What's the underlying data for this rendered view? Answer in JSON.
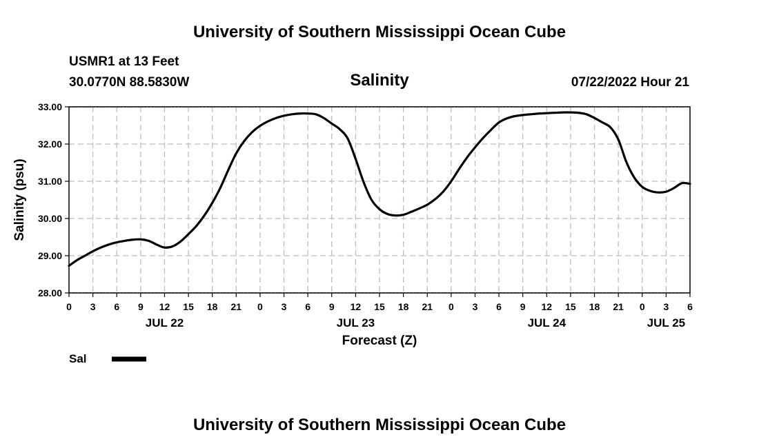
{
  "header": {
    "title": "University of Southern Mississippi Ocean Cube",
    "station": "USMR1 at 13 Feet",
    "coords": "30.0770N  88.5830W",
    "datetime": "07/22/2022 Hour 21"
  },
  "footer": {
    "title": "University of Southern Mississippi Ocean Cube"
  },
  "chart_data": {
    "type": "line",
    "title": "Salinity",
    "xlabel": "Forecast (Z)",
    "ylabel": "Salinity (psu)",
    "x_unit": "hours from JUL 22 00Z",
    "xlim": [
      0,
      78
    ],
    "ylim": [
      28.0,
      33.0
    ],
    "grid": true,
    "x_ticks": [
      0,
      3,
      6,
      9,
      12,
      15,
      18,
      21,
      24,
      27,
      30,
      33,
      36,
      39,
      42,
      45,
      48,
      51,
      54,
      57,
      60,
      63,
      66,
      69,
      72,
      75,
      78
    ],
    "x_tick_labels": [
      "0",
      "3",
      "6",
      "9",
      "12",
      "15",
      "18",
      "21",
      "0",
      "3",
      "6",
      "9",
      "12",
      "15",
      "18",
      "21",
      "0",
      "3",
      "6",
      "9",
      "12",
      "15",
      "18",
      "21",
      "0",
      "3",
      "6"
    ],
    "y_ticks": [
      28.0,
      29.0,
      30.0,
      31.0,
      32.0,
      33.0
    ],
    "y_tick_labels": [
      "28.00",
      "29.00",
      "30.00",
      "31.00",
      "32.00",
      "33.00"
    ],
    "date_labels": [
      {
        "x": 12,
        "label": "JUL 22"
      },
      {
        "x": 36,
        "label": "JUL 23"
      },
      {
        "x": 60,
        "label": "JUL 24"
      },
      {
        "x": 75,
        "label": "JUL 25"
      }
    ],
    "legend": {
      "position": "bottom-left",
      "entries": [
        "Sal"
      ]
    },
    "series": [
      {
        "name": "Sal",
        "x": [
          0,
          1,
          2,
          3,
          4,
          5,
          6,
          7,
          8,
          9,
          10,
          11,
          12,
          13,
          14,
          15,
          16,
          17,
          18,
          19,
          20,
          21,
          22,
          23,
          24,
          25,
          26,
          27,
          28,
          29,
          30,
          31,
          32,
          33,
          34,
          35,
          36,
          37,
          38,
          39,
          40,
          41,
          42,
          43,
          44,
          45,
          46,
          47,
          48,
          49,
          50,
          51,
          52,
          53,
          54,
          55,
          56,
          57,
          58,
          59,
          60,
          61,
          62,
          63,
          64,
          65,
          66,
          67,
          68,
          69,
          70,
          71,
          72,
          73,
          74,
          75,
          76,
          77,
          78
        ],
        "values": [
          28.73,
          28.88,
          29.0,
          29.12,
          29.22,
          29.3,
          29.36,
          29.4,
          29.43,
          29.44,
          29.4,
          29.3,
          29.22,
          29.25,
          29.38,
          29.58,
          29.8,
          30.08,
          30.42,
          30.82,
          31.3,
          31.75,
          32.08,
          32.32,
          32.49,
          32.61,
          32.7,
          32.76,
          32.8,
          32.82,
          32.82,
          32.8,
          32.7,
          32.55,
          32.4,
          32.15,
          31.6,
          30.98,
          30.5,
          30.25,
          30.12,
          30.08,
          30.1,
          30.18,
          30.27,
          30.37,
          30.52,
          30.72,
          31.0,
          31.33,
          31.64,
          31.91,
          32.16,
          32.38,
          32.58,
          32.69,
          32.75,
          32.78,
          32.8,
          32.82,
          32.83,
          32.84,
          32.85,
          32.85,
          32.84,
          32.8,
          32.7,
          32.58,
          32.45,
          32.12,
          31.52,
          31.1,
          30.85,
          30.74,
          30.7,
          30.72,
          30.82,
          30.95,
          30.93
        ]
      }
    ]
  }
}
